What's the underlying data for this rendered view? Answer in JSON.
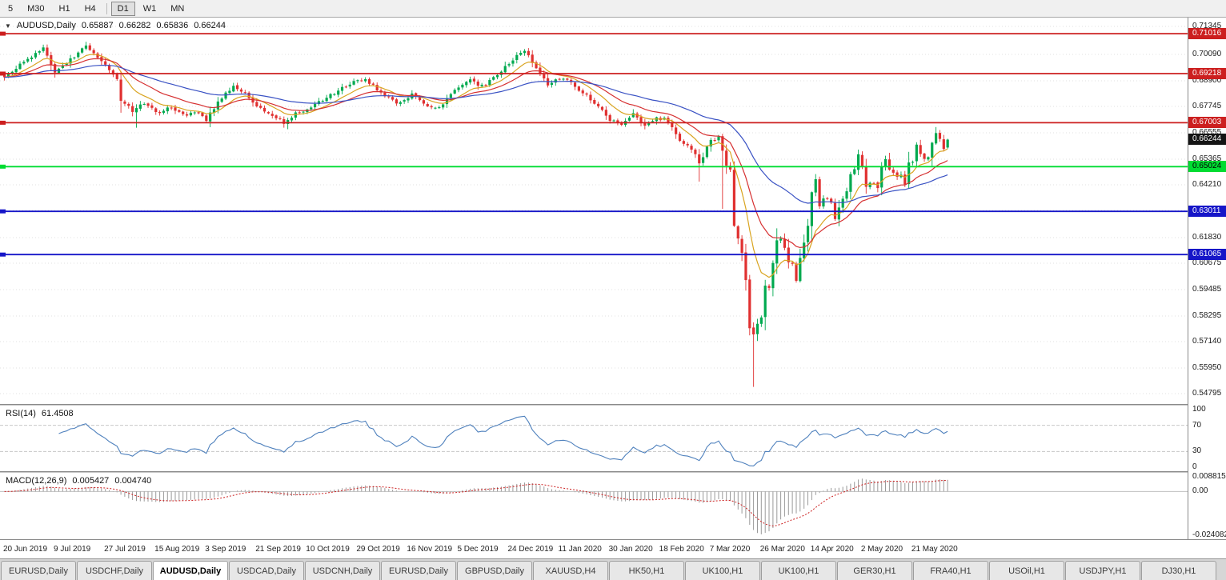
{
  "toolbar": {
    "timeframe_buttons": [
      "5",
      "M30",
      "H1",
      "H4",
      "D1",
      "W1",
      "MN"
    ],
    "active": "D1"
  },
  "chart_data": {
    "type": "candlestick",
    "main": {
      "header": {
        "icon": "▼",
        "symbol": "AUDUSD,Daily",
        "open": "0.65887",
        "high": "0.66282",
        "low": "0.65836",
        "close": "0.66244"
      },
      "view_high": 0.7174,
      "view_low": 0.5433,
      "candles_count": 244,
      "bull_color": "#00A94F",
      "bear_color": "#E03030",
      "close_anchors": [
        [
          0,
          0.6905
        ],
        [
          3,
          0.695
        ],
        [
          7,
          0.6995
        ],
        [
          10,
          0.7038
        ],
        [
          13,
          0.693
        ],
        [
          17,
          0.6985
        ],
        [
          21,
          0.7045
        ],
        [
          25,
          0.698
        ],
        [
          29,
          0.69
        ],
        [
          30,
          0.68
        ],
        [
          33,
          0.6755
        ],
        [
          36,
          0.679
        ],
        [
          39,
          0.6745
        ],
        [
          43,
          0.677
        ],
        [
          46,
          0.6735
        ],
        [
          50,
          0.675
        ],
        [
          52,
          0.6715
        ],
        [
          55,
          0.6795
        ],
        [
          59,
          0.6865
        ],
        [
          62,
          0.683
        ],
        [
          65,
          0.677
        ],
        [
          68,
          0.6745
        ],
        [
          72,
          0.67
        ],
        [
          75,
          0.674
        ],
        [
          78,
          0.676
        ],
        [
          82,
          0.6805
        ],
        [
          86,
          0.6845
        ],
        [
          90,
          0.6885
        ],
        [
          93,
          0.6895
        ],
        [
          97,
          0.6835
        ],
        [
          101,
          0.679
        ],
        [
          105,
          0.6825
        ],
        [
          109,
          0.678
        ],
        [
          112,
          0.6765
        ],
        [
          116,
          0.6845
        ],
        [
          120,
          0.689
        ],
        [
          123,
          0.6865
        ],
        [
          127,
          0.6915
        ],
        [
          131,
          0.6985
        ],
        [
          134,
          0.7025
        ],
        [
          137,
          0.694
        ],
        [
          140,
          0.6875
        ],
        [
          144,
          0.6905
        ],
        [
          148,
          0.685
        ],
        [
          152,
          0.679
        ],
        [
          156,
          0.6715
        ],
        [
          159,
          0.669
        ],
        [
          162,
          0.674
        ],
        [
          165,
          0.6685
        ],
        [
          168,
          0.672
        ],
        [
          170,
          0.6715
        ],
        [
          172,
          0.668
        ],
        [
          174,
          0.662
        ],
        [
          176,
          0.66
        ],
        [
          178,
          0.656
        ],
        [
          179,
          0.6515
        ],
        [
          180,
          0.654
        ],
        [
          181,
          0.659
        ],
        [
          182,
          0.6625
        ],
        [
          183,
          0.6615
        ],
        [
          184,
          0.664
        ],
        [
          185,
          0.658
        ],
        [
          186,
          0.65
        ],
        [
          187,
          0.649
        ],
        [
          188,
          0.6235
        ],
        [
          189,
          0.6185
        ],
        [
          190,
          0.612
        ],
        [
          191,
          0.599
        ],
        [
          192,
          0.578
        ],
        [
          193,
          0.5745
        ],
        [
          194,
          0.58
        ],
        [
          195,
          0.583
        ],
        [
          196,
          0.596
        ],
        [
          197,
          0.5955
        ],
        [
          198,
          0.6065
        ],
        [
          199,
          0.617
        ],
        [
          200,
          0.617
        ],
        [
          201,
          0.6135
        ],
        [
          202,
          0.607
        ],
        [
          203,
          0.606
        ],
        [
          204,
          0.5995
        ],
        [
          205,
          0.6085
        ],
        [
          206,
          0.6165
        ],
        [
          207,
          0.6235
        ],
        [
          208,
          0.639
        ],
        [
          209,
          0.644
        ],
        [
          210,
          0.632
        ],
        [
          211,
          0.636
        ],
        [
          212,
          0.6365
        ],
        [
          213,
          0.6335
        ],
        [
          214,
          0.627
        ],
        [
          215,
          0.632
        ],
        [
          216,
          0.6365
        ],
        [
          217,
          0.6395
        ],
        [
          218,
          0.6465
        ],
        [
          219,
          0.649
        ],
        [
          220,
          0.6555
        ],
        [
          221,
          0.651
        ],
        [
          222,
          0.6415
        ],
        [
          223,
          0.643
        ],
        [
          224,
          0.6435
        ],
        [
          225,
          0.64
        ],
        [
          226,
          0.6495
        ],
        [
          227,
          0.653
        ],
        [
          228,
          0.6485
        ],
        [
          229,
          0.647
        ],
        [
          230,
          0.645
        ],
        [
          231,
          0.646
        ],
        [
          232,
          0.6415
        ],
        [
          233,
          0.6525
        ],
        [
          234,
          0.653
        ],
        [
          235,
          0.6595
        ],
        [
          236,
          0.6565
        ],
        [
          237,
          0.6535
        ],
        [
          238,
          0.655
        ],
        [
          239,
          0.6605
        ],
        [
          240,
          0.6655
        ],
        [
          241,
          0.6625
        ],
        [
          242,
          0.6589
        ],
        [
          243,
          0.66244
        ]
      ],
      "wick_overrides": {
        "10": {
          "high": 0.7052
        },
        "21": {
          "high": 0.7065
        },
        "34": {
          "low": 0.6678
        },
        "73": {
          "low": 0.6671
        },
        "134": {
          "high": 0.7032
        },
        "179": {
          "low": 0.6435
        },
        "185": {
          "low": 0.6312
        },
        "193": {
          "low": 0.551
        },
        "240": {
          "high": 0.6681
        },
        "243": {
          "open": 0.65887,
          "high": 0.66282,
          "low": 0.65836
        }
      },
      "moving_averages": [
        {
          "name": "ma-fast",
          "period": 10,
          "color": "#D9A420"
        },
        {
          "name": "ma-medium",
          "period": 21,
          "color": "#D63031"
        },
        {
          "name": "ma-slow",
          "period": 50,
          "color": "#3A52C4"
        }
      ],
      "hlines": [
        {
          "price": 0.71016,
          "label": "0.71016",
          "color": "#CC1F1F",
          "text_color": "#ffffff"
        },
        {
          "price": 0.69218,
          "label": "0.69218",
          "color": "#CC1F1F",
          "text_color": "#ffffff"
        },
        {
          "price": 0.67003,
          "label": "0.67003",
          "color": "#CC1F1F",
          "text_color": "#ffffff"
        },
        {
          "price": 0.65024,
          "label": "0.65024",
          "color": "#00DC32",
          "text_color": "#000000"
        },
        {
          "price": 0.63011,
          "label": "0.63011",
          "color": "#1616C8",
          "text_color": "#ffffff"
        },
        {
          "price": 0.61065,
          "label": "0.61065",
          "color": "#1616C8",
          "text_color": "#ffffff"
        }
      ],
      "current_price": {
        "label": "0.66244",
        "value": 0.66244,
        "bg": "#141414"
      },
      "price_axis_labels": [
        {
          "text": "0.71345",
          "price": 0.71345
        },
        {
          "text": "0.70090",
          "price": 0.7009
        },
        {
          "text": "0.68900",
          "price": 0.689
        },
        {
          "text": "0.67745",
          "price": 0.67745
        },
        {
          "text": "0.66555",
          "price": 0.66555
        },
        {
          "text": "0.65365",
          "price": 0.65365
        },
        {
          "text": "0.64210",
          "price": 0.6421
        },
        {
          "text": "0.63055",
          "price": 0.63055
        },
        {
          "text": "0.61830",
          "price": 0.6183
        },
        {
          "text": "0.60675",
          "price": 0.60675
        },
        {
          "text": "0.59485",
          "price": 0.59485
        },
        {
          "text": "0.58295",
          "price": 0.58295
        },
        {
          "text": "0.57140",
          "price": 0.5714
        },
        {
          "text": "0.55950",
          "price": 0.5595
        },
        {
          "text": "0.54795",
          "price": 0.54795
        }
      ]
    },
    "rsi": {
      "label": "RSI(14)",
      "value": "61.4508",
      "period": 14,
      "color": "#4F81BD",
      "levels": [
        70,
        30
      ],
      "axis_labels": [
        {
          "text": "100",
          "value": 100
        },
        {
          "text": "70",
          "value": 70
        },
        {
          "text": "30",
          "value": 30
        },
        {
          "text": "0",
          "value": 0
        }
      ]
    },
    "macd": {
      "label": "MACD(12,26,9)",
      "value_main": "0.005427",
      "value_signal": "0.004740",
      "fast": 12,
      "slow": 26,
      "signal": 9,
      "histogram_color": "#9A9A9A",
      "signal_color": "#CC2222",
      "axis_labels": [
        {
          "text": "0.008815",
          "value": 0.008815
        },
        {
          "text": "0.00",
          "value": 0
        },
        {
          "text": "-0.024082",
          "value": -0.024082
        }
      ]
    },
    "x_axis": {
      "labels": [
        "20 Jun 2019",
        "9 Jul 2019",
        "27 Jul 2019",
        "15 Aug 2019",
        "3 Sep 2019",
        "21 Sep 2019",
        "10 Oct 2019",
        "29 Oct 2019",
        "16 Nov 2019",
        "5 Dec 2019",
        "24 Dec 2019",
        "11 Jan 2020",
        "30 Jan 2020",
        "18 Feb 2020",
        "7 Mar 2020",
        "26 Mar 2020",
        "14 Apr 2020",
        "2 May 2020",
        "21 May 2020"
      ],
      "indices": [
        0,
        13,
        26,
        39,
        52,
        65,
        78,
        91,
        104,
        117,
        130,
        143,
        156,
        169,
        182,
        195,
        208,
        221,
        234
      ]
    }
  },
  "tabs": {
    "items": [
      {
        "label": "EURUSD,Daily",
        "active": false
      },
      {
        "label": "USDCHF,Daily",
        "active": false
      },
      {
        "label": "AUDUSD,Daily",
        "active": true
      },
      {
        "label": "USDCAD,Daily",
        "active": false
      },
      {
        "label": "USDCNH,Daily",
        "active": false
      },
      {
        "label": "EURUSD,Daily",
        "active": false
      },
      {
        "label": "GBPUSD,Daily",
        "active": false
      },
      {
        "label": "XAUUSD,H4",
        "active": false
      },
      {
        "label": "HK50,H1",
        "active": false
      },
      {
        "label": "UK100,H1",
        "active": false
      },
      {
        "label": "UK100,H1",
        "active": false
      },
      {
        "label": "GER30,H1",
        "active": false
      },
      {
        "label": "FRA40,H1",
        "active": false
      },
      {
        "label": "USOil,H1",
        "active": false
      },
      {
        "label": "USDJPY,H1",
        "active": false
      },
      {
        "label": "DJ30,H1",
        "active": false
      }
    ]
  }
}
